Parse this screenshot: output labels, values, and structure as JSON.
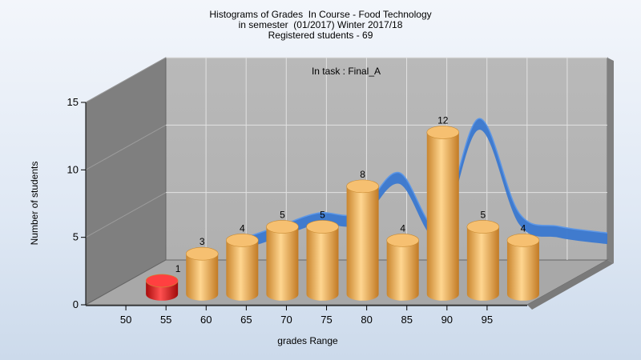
{
  "chart_data": {
    "type": "bar",
    "title": "Histograms of Grades  In Course - Food Technology",
    "subtitle_lines": [
      "in semester  (01/2017) Winter 2017/18",
      "Registered students - 69"
    ],
    "annotation": "In task : Final_A",
    "xlabel": "grades Range",
    "ylabel": "Number of students",
    "x_ticks": [
      "50",
      "55",
      "60",
      "65",
      "70",
      "75",
      "80",
      "85",
      "90",
      "95"
    ],
    "y_ticks": [
      "0",
      "5",
      "10",
      "15"
    ],
    "ylim": [
      0,
      15
    ],
    "bins": [
      {
        "from": 50,
        "to": 55,
        "value": 1,
        "color": "#e02020"
      },
      {
        "from": 55,
        "to": 60,
        "value": 3,
        "color": "#f0b04a"
      },
      {
        "from": 60,
        "to": 65,
        "value": 4,
        "color": "#f0b04a"
      },
      {
        "from": 65,
        "to": 70,
        "value": 5,
        "color": "#f0b04a"
      },
      {
        "from": 70,
        "to": 75,
        "value": 5,
        "color": "#f0b04a"
      },
      {
        "from": 75,
        "to": 80,
        "value": 8,
        "color": "#f0b04a"
      },
      {
        "from": 80,
        "to": 85,
        "value": 4,
        "color": "#f0b04a"
      },
      {
        "from": 85,
        "to": 90,
        "value": 12,
        "color": "#f0b04a"
      },
      {
        "from": 90,
        "to": 95,
        "value": 5,
        "color": "#f0b04a"
      },
      {
        "from": 95,
        "to": 100,
        "value": 4,
        "color": "#f0b04a"
      }
    ],
    "trend_color": "#3a78d0"
  }
}
